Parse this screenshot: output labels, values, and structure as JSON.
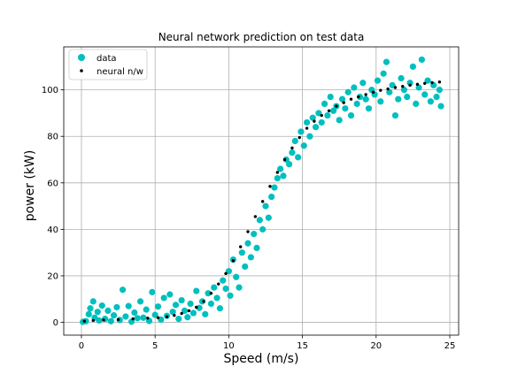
{
  "chart_data": {
    "type": "scatter",
    "title": "Neural network prediction on test data",
    "xlabel": "Speed (m/s)",
    "ylabel": "power (kW)",
    "xlim": [
      -1.2,
      25.6
    ],
    "ylim": [
      -5.5,
      118.5
    ],
    "xticks": [
      0,
      5,
      10,
      15,
      20,
      25
    ],
    "yticks": [
      0,
      20,
      40,
      60,
      80,
      100
    ],
    "grid": true,
    "legend_position": "top-left",
    "series": [
      {
        "name": "data",
        "color": "#00bfbf",
        "marker": "circle-large",
        "points": [
          [
            0.1,
            0.2
          ],
          [
            0.3,
            0.5
          ],
          [
            0.5,
            3.5
          ],
          [
            0.6,
            6.0
          ],
          [
            0.8,
            9.0
          ],
          [
            0.9,
            2.0
          ],
          [
            1.1,
            4.5
          ],
          [
            1.2,
            0.8
          ],
          [
            1.4,
            7.2
          ],
          [
            1.6,
            1.5
          ],
          [
            1.8,
            5.0
          ],
          [
            2.0,
            0.5
          ],
          [
            2.2,
            3.0
          ],
          [
            2.4,
            6.5
          ],
          [
            2.6,
            1.0
          ],
          [
            2.8,
            14.0
          ],
          [
            3.0,
            2.5
          ],
          [
            3.2,
            7.0
          ],
          [
            3.4,
            0.3
          ],
          [
            3.6,
            4.2
          ],
          [
            3.8,
            1.8
          ],
          [
            4.0,
            9.0
          ],
          [
            4.2,
            2.0
          ],
          [
            4.4,
            5.5
          ],
          [
            4.6,
            0.6
          ],
          [
            4.8,
            13.0
          ],
          [
            5.0,
            3.2
          ],
          [
            5.2,
            6.8
          ],
          [
            5.4,
            1.2
          ],
          [
            5.6,
            10.5
          ],
          [
            5.8,
            2.8
          ],
          [
            6.0,
            12.0
          ],
          [
            6.2,
            4.5
          ],
          [
            6.4,
            7.5
          ],
          [
            6.6,
            1.5
          ],
          [
            6.8,
            9.5
          ],
          [
            7.0,
            5.0
          ],
          [
            7.2,
            2.2
          ],
          [
            7.4,
            8.0
          ],
          [
            7.6,
            4.0
          ],
          [
            7.8,
            13.5
          ],
          [
            8.0,
            6.2
          ],
          [
            8.2,
            9.0
          ],
          [
            8.4,
            3.5
          ],
          [
            8.6,
            12.5
          ],
          [
            8.8,
            8.0
          ],
          [
            9.0,
            15.0
          ],
          [
            9.2,
            10.5
          ],
          [
            9.4,
            6.0
          ],
          [
            9.6,
            18.0
          ],
          [
            9.8,
            14.5
          ],
          [
            10.0,
            22.0
          ],
          [
            10.1,
            11.5
          ],
          [
            10.3,
            27.0
          ],
          [
            10.5,
            19.5
          ],
          [
            10.7,
            15.0
          ],
          [
            10.9,
            30.0
          ],
          [
            11.1,
            24.0
          ],
          [
            11.3,
            34.0
          ],
          [
            11.5,
            28.0
          ],
          [
            11.7,
            38.0
          ],
          [
            11.9,
            32.0
          ],
          [
            12.1,
            44.0
          ],
          [
            12.3,
            40.0
          ],
          [
            12.5,
            50.0
          ],
          [
            12.7,
            45.0
          ],
          [
            12.9,
            54.0
          ],
          [
            13.1,
            58.0
          ],
          [
            13.3,
            62.0
          ],
          [
            13.5,
            66.0
          ],
          [
            13.7,
            63.0
          ],
          [
            13.9,
            70.0
          ],
          [
            14.1,
            68.0
          ],
          [
            14.3,
            73.0
          ],
          [
            14.5,
            78.0
          ],
          [
            14.7,
            71.0
          ],
          [
            14.9,
            82.0
          ],
          [
            15.1,
            76.0
          ],
          [
            15.3,
            86.0
          ],
          [
            15.5,
            80.0
          ],
          [
            15.7,
            88.0
          ],
          [
            15.9,
            84.0
          ],
          [
            16.1,
            90.0
          ],
          [
            16.3,
            86.0
          ],
          [
            16.5,
            94.0
          ],
          [
            16.7,
            89.0
          ],
          [
            16.9,
            97.0
          ],
          [
            17.1,
            91.0
          ],
          [
            17.3,
            93.0
          ],
          [
            17.5,
            87.0
          ],
          [
            17.7,
            96.0
          ],
          [
            17.9,
            92.0
          ],
          [
            18.1,
            99.0
          ],
          [
            18.3,
            89.0
          ],
          [
            18.5,
            101.0
          ],
          [
            18.7,
            94.0
          ],
          [
            18.9,
            97.0
          ],
          [
            19.1,
            103.0
          ],
          [
            19.3,
            96.0
          ],
          [
            19.5,
            92.0
          ],
          [
            19.7,
            100.0
          ],
          [
            19.9,
            98.0
          ],
          [
            20.1,
            104.0
          ],
          [
            20.3,
            95.0
          ],
          [
            20.5,
            107.0
          ],
          [
            20.7,
            112.0
          ],
          [
            20.9,
            99.0
          ],
          [
            21.1,
            102.0
          ],
          [
            21.3,
            89.0
          ],
          [
            21.5,
            96.0
          ],
          [
            21.7,
            105.0
          ],
          [
            21.9,
            100.0
          ],
          [
            22.1,
            97.0
          ],
          [
            22.3,
            103.0
          ],
          [
            22.5,
            110.0
          ],
          [
            22.7,
            94.0
          ],
          [
            22.9,
            101.0
          ],
          [
            23.1,
            113.0
          ],
          [
            23.3,
            98.0
          ],
          [
            23.5,
            104.0
          ],
          [
            23.7,
            95.0
          ],
          [
            23.9,
            102.0
          ],
          [
            24.1,
            97.0
          ],
          [
            24.3,
            100.0
          ],
          [
            24.4,
            93.0
          ]
        ]
      },
      {
        "name": "neural n/w",
        "color": "#000000",
        "marker": "dot-small",
        "points": [
          [
            0.2,
            0.5
          ],
          [
            0.8,
            0.8
          ],
          [
            1.5,
            1.0
          ],
          [
            2.5,
            1.2
          ],
          [
            3.5,
            1.5
          ],
          [
            4.5,
            1.8
          ],
          [
            5.2,
            2.0
          ],
          [
            5.8,
            2.4
          ],
          [
            6.3,
            3.0
          ],
          [
            6.8,
            3.8
          ],
          [
            7.3,
            5.0
          ],
          [
            7.8,
            6.5
          ],
          [
            8.3,
            9.0
          ],
          [
            8.8,
            12.5
          ],
          [
            9.3,
            16.5
          ],
          [
            9.8,
            21.0
          ],
          [
            10.3,
            26.5
          ],
          [
            10.8,
            32.5
          ],
          [
            11.3,
            39.0
          ],
          [
            11.8,
            45.5
          ],
          [
            12.3,
            52.0
          ],
          [
            12.8,
            58.5
          ],
          [
            13.3,
            64.5
          ],
          [
            13.8,
            70.0
          ],
          [
            14.3,
            75.0
          ],
          [
            14.8,
            79.5
          ],
          [
            15.3,
            83.5
          ],
          [
            15.8,
            86.5
          ],
          [
            16.3,
            89.0
          ],
          [
            16.8,
            91.0
          ],
          [
            17.3,
            93.0
          ],
          [
            17.8,
            94.5
          ],
          [
            18.3,
            96.0
          ],
          [
            18.8,
            97.0
          ],
          [
            19.3,
            98.0
          ],
          [
            19.8,
            99.0
          ],
          [
            20.3,
            99.8
          ],
          [
            20.8,
            100.4
          ],
          [
            21.3,
            101.0
          ],
          [
            21.8,
            101.5
          ],
          [
            22.3,
            102.0
          ],
          [
            22.8,
            102.4
          ],
          [
            23.3,
            102.8
          ],
          [
            23.8,
            103.1
          ],
          [
            24.3,
            103.4
          ]
        ]
      }
    ]
  }
}
